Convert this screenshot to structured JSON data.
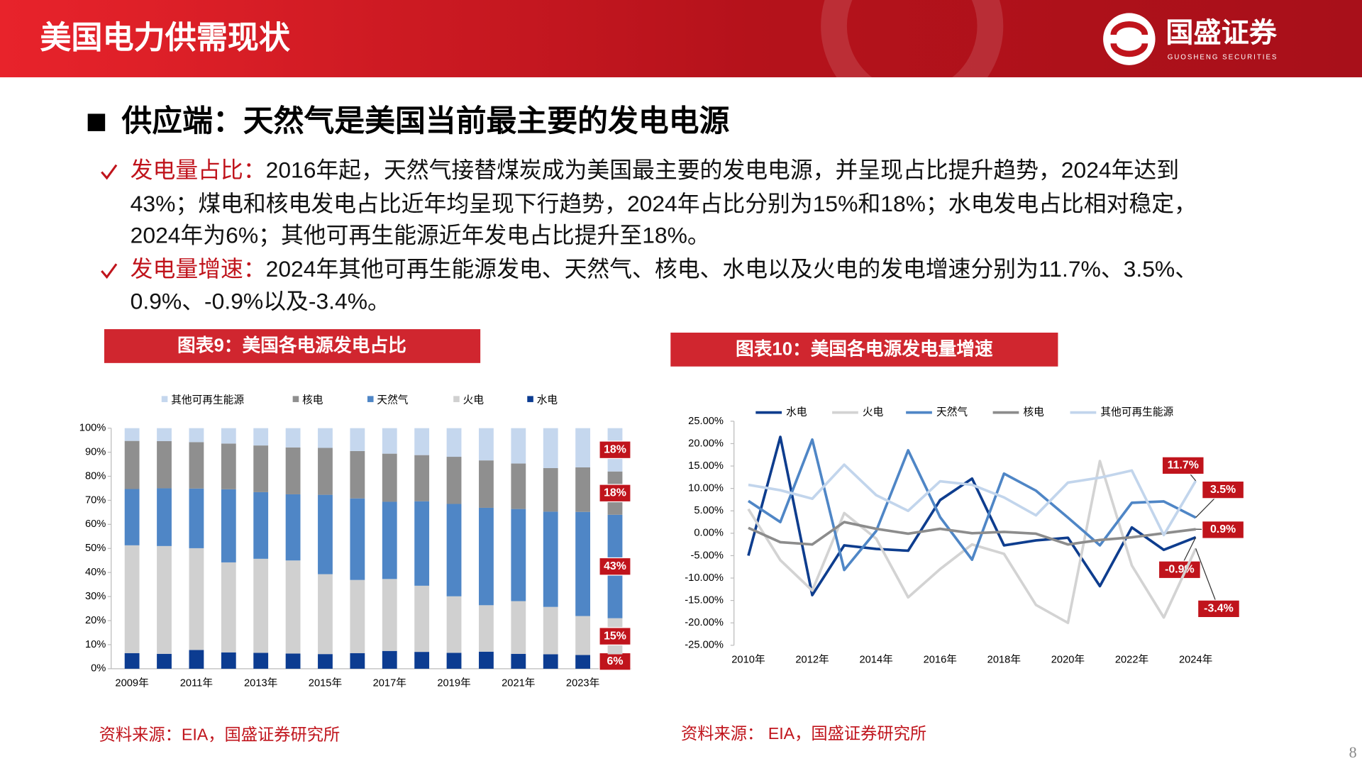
{
  "header": {
    "title": "美国电力供需现状",
    "logo_name": "国盛证券",
    "logo_subtitle": "GUOSHENG SECURITIES"
  },
  "heading": "供应端：天然气是美国当前最主要的发电电源",
  "bullets": [
    {
      "label": "发电量占比：",
      "lines": [
        "2016年起，天然气接替煤炭成为美国最主要的发电电源，并呈现占比提升趋势，2024年达到",
        "43%；煤电和核电发电占比近年均呈现下行趋势，2024年占比分别为15%和18%；水电发电占比相对稳定，",
        "2024年为6%；其他可再生能源近年发电占比提升至18%。"
      ]
    },
    {
      "label": "发电量增速：",
      "lines": [
        "2024年其他可再生能源发电、天然气、核电、水电以及火电的发电增速分别为11.7%、3.5%、",
        "0.9%、-0.9%以及-3.4%。"
      ]
    }
  ],
  "chart_data": [
    {
      "type": "bar",
      "stacked": true,
      "title": "图表9：美国各电源发电占比",
      "categories": [
        "2009年",
        null,
        "2011年",
        null,
        "2013年",
        null,
        "2015年",
        null,
        "2017年",
        null,
        "2019年",
        null,
        "2021年",
        null,
        "2023年",
        null
      ],
      "series": [
        {
          "name": "其他可再生能源",
          "color": "#c5d7ee",
          "values": [
            5.3,
            5.4,
            5.8,
            6.4,
            7.2,
            8.0,
            8.2,
            9.5,
            10.6,
            11.2,
            11.9,
            13.4,
            14.7,
            16.6,
            16.3,
            18
          ],
          "value_labels": [
            null,
            null,
            null,
            null,
            null,
            null,
            null,
            null,
            null,
            null,
            null,
            null,
            null,
            null,
            null,
            "18%"
          ]
        },
        {
          "name": "核电",
          "color": "#8f8f8f",
          "values": [
            20.0,
            19.6,
            19.3,
            19.0,
            19.4,
            19.5,
            19.5,
            19.7,
            20.0,
            19.2,
            19.6,
            19.7,
            18.9,
            18.1,
            18.5,
            18
          ],
          "value_labels": [
            null,
            null,
            null,
            null,
            null,
            null,
            null,
            null,
            null,
            null,
            null,
            null,
            null,
            null,
            null,
            "18%"
          ]
        },
        {
          "name": "天然气",
          "color": "#4f86c6",
          "values": [
            23.4,
            24.0,
            24.8,
            30.4,
            27.7,
            27.5,
            33.0,
            33.9,
            32.1,
            35.1,
            38.4,
            40.5,
            38.3,
            39.6,
            43.3,
            43
          ],
          "value_labels": [
            null,
            null,
            null,
            null,
            null,
            null,
            null,
            null,
            null,
            null,
            null,
            null,
            null,
            null,
            null,
            "43%"
          ]
        },
        {
          "name": "火电",
          "color": "#d0d0d0",
          "values": [
            44.8,
            44.8,
            42.3,
            37.4,
            39.1,
            38.7,
            33.2,
            30.4,
            29.9,
            27.5,
            23.5,
            19.3,
            21.9,
            19.7,
            16.2,
            15
          ],
          "value_labels": [
            null,
            null,
            null,
            null,
            null,
            null,
            null,
            null,
            null,
            null,
            null,
            null,
            null,
            null,
            null,
            "15%"
          ]
        },
        {
          "name": "水电",
          "color": "#0c3c91",
          "values": [
            6.5,
            6.2,
            7.8,
            6.8,
            6.6,
            6.3,
            6.1,
            6.5,
            7.4,
            7.0,
            6.6,
            7.1,
            6.2,
            6.0,
            5.7,
            6
          ],
          "value_labels": [
            null,
            null,
            null,
            null,
            null,
            null,
            null,
            null,
            null,
            null,
            null,
            null,
            null,
            null,
            null,
            "6%"
          ]
        }
      ],
      "ylim": [
        0,
        100
      ],
      "yticks": [
        {
          "value": 0,
          "label": "0%"
        },
        {
          "value": 10,
          "label": "10%"
        },
        {
          "value": 20,
          "label": "20%"
        },
        {
          "value": 30,
          "label": "30%"
        },
        {
          "value": 40,
          "label": "40%"
        },
        {
          "value": 50,
          "label": "50%"
        },
        {
          "value": 60,
          "label": "60%"
        },
        {
          "value": 70,
          "label": "70%"
        },
        {
          "value": 80,
          "label": "80%"
        },
        {
          "value": 90,
          "label": "90%"
        },
        {
          "value": 100,
          "label": "100%"
        }
      ],
      "grid": false
    },
    {
      "type": "line",
      "title": "图表10：美国各电源发电量增速",
      "x": [
        2010,
        2011,
        2012,
        2013,
        2014,
        2015,
        2016,
        2017,
        2018,
        2019,
        2020,
        2021,
        2022,
        2023,
        2024
      ],
      "series": [
        {
          "name": "水电",
          "color": "#0e3d8e",
          "values": [
            -5.0,
            21.5,
            -13.8,
            -2.7,
            -3.5,
            -3.9,
            7.4,
            12.2,
            -2.7,
            -1.6,
            -1.0,
            -11.8,
            1.3,
            -3.7,
            -0.9
          ],
          "value_labels": [
            null,
            null,
            null,
            null,
            null,
            null,
            null,
            null,
            null,
            null,
            null,
            null,
            null,
            null,
            "-0.9%"
          ]
        },
        {
          "name": "火电",
          "color": "#d3d3d3",
          "values": [
            5.4,
            -6.0,
            -12.8,
            4.5,
            -1.2,
            -14.3,
            -8.0,
            -2.5,
            -4.6,
            -16.0,
            -20.0,
            16.1,
            -7.2,
            -18.8,
            -3.4
          ],
          "value_labels": [
            null,
            null,
            null,
            null,
            null,
            null,
            null,
            null,
            null,
            null,
            null,
            null,
            null,
            null,
            "-3.4%"
          ]
        },
        {
          "name": "天然气",
          "color": "#4f86c6",
          "values": [
            7.2,
            2.5,
            20.9,
            -8.2,
            0.5,
            18.5,
            3.6,
            -5.9,
            13.3,
            9.5,
            3.5,
            -2.7,
            6.8,
            7.1,
            3.5
          ],
          "value_labels": [
            null,
            null,
            null,
            null,
            null,
            null,
            null,
            null,
            null,
            null,
            null,
            null,
            null,
            null,
            "3.5%"
          ]
        },
        {
          "name": "核电",
          "color": "#8c8c8c",
          "values": [
            1.2,
            -2.0,
            -2.5,
            2.5,
            1.0,
            -0.1,
            1.0,
            0.0,
            0.3,
            -0.1,
            -2.5,
            -1.5,
            -0.9,
            0.0,
            0.9
          ],
          "value_labels": [
            null,
            null,
            null,
            null,
            null,
            null,
            null,
            null,
            null,
            null,
            null,
            null,
            null,
            null,
            "0.9%"
          ]
        },
        {
          "name": "其他可再生能源",
          "color": "#c2d5ec",
          "values": [
            10.8,
            9.6,
            7.7,
            15.3,
            8.5,
            5.0,
            11.6,
            10.8,
            8.0,
            4.0,
            11.3,
            12.4,
            14.0,
            -0.4,
            11.7
          ],
          "value_labels": [
            null,
            null,
            null,
            null,
            null,
            null,
            null,
            null,
            null,
            null,
            null,
            null,
            null,
            null,
            "11.7%"
          ]
        }
      ],
      "xlim": [
        2009.55,
        2024.5
      ],
      "xticks": [
        {
          "value": 2010,
          "label": "2010年"
        },
        {
          "value": 2012,
          "label": "2012年"
        },
        {
          "value": 2014,
          "label": "2014年"
        },
        {
          "value": 2016,
          "label": "2016年"
        },
        {
          "value": 2018,
          "label": "2018年"
        },
        {
          "value": 2020,
          "label": "2020年"
        },
        {
          "value": 2022,
          "label": "2022年"
        },
        {
          "value": 2024,
          "label": "2024年"
        }
      ],
      "ylim": [
        -25,
        25
      ],
      "yticks": [
        {
          "value": 25,
          "label": "25.00%"
        },
        {
          "value": 20,
          "label": "20.00%"
        },
        {
          "value": 15,
          "label": "15.00%"
        },
        {
          "value": 10,
          "label": "10.00%"
        },
        {
          "value": 5,
          "label": "5.00%"
        },
        {
          "value": 0,
          "label": "0.00%"
        },
        {
          "value": -5,
          "label": "-5.00%"
        },
        {
          "value": -10,
          "label": "-10.00%"
        },
        {
          "value": -15,
          "label": "-15.00%"
        },
        {
          "value": -20,
          "label": "-20.00%"
        },
        {
          "value": -25,
          "label": "-25.00%"
        }
      ],
      "grid": false
    }
  ],
  "sources": [
    "资料来源：EIA，国盛证券研究所",
    "资料来源： EIA，国盛证券研究所"
  ],
  "page_number": "8"
}
